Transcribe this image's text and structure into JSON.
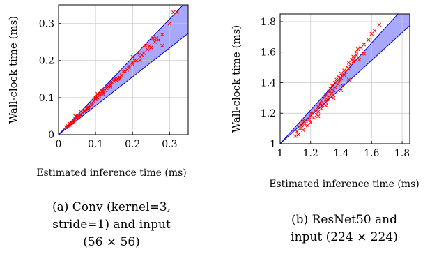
{
  "chart_data": [
    {
      "type": "scatter",
      "xlabel": "Estimated inference time (ms)",
      "ylabel": "Wall-clock time (ms)",
      "caption_lines": [
        "(a) Conv (kernel=3,",
        "stride=1) and input",
        "(56 × 56)"
      ],
      "xlim": [
        0,
        0.35
      ],
      "ylim": [
        0,
        0.35
      ],
      "xticks": [
        0,
        0.1,
        0.2,
        0.3
      ],
      "yticks": [
        0,
        0.1,
        0.2,
        0.3
      ],
      "xtick_labels": [
        "0",
        "0.1",
        "0.2",
        "0.3"
      ],
      "ytick_labels": [
        "0",
        "0.1",
        "0.2",
        "0.3"
      ],
      "grid": true,
      "band": {
        "lower_slope": 0.78,
        "upper_slope": 1.04,
        "color": "#9999ff"
      },
      "marker_color": "#ff0000",
      "points": [
        [
          0.02,
          0.02
        ],
        [
          0.025,
          0.023
        ],
        [
          0.03,
          0.026
        ],
        [
          0.03,
          0.03
        ],
        [
          0.035,
          0.032
        ],
        [
          0.04,
          0.035
        ],
        [
          0.04,
          0.038
        ],
        [
          0.045,
          0.04
        ],
        [
          0.05,
          0.045
        ],
        [
          0.05,
          0.048
        ],
        [
          0.055,
          0.05
        ],
        [
          0.06,
          0.055
        ],
        [
          0.06,
          0.052
        ],
        [
          0.065,
          0.06
        ],
        [
          0.07,
          0.065
        ],
        [
          0.07,
          0.062
        ],
        [
          0.075,
          0.07
        ],
        [
          0.08,
          0.072
        ],
        [
          0.08,
          0.068
        ],
        [
          0.085,
          0.075
        ],
        [
          0.09,
          0.08
        ],
        [
          0.09,
          0.085
        ],
        [
          0.095,
          0.09
        ],
        [
          0.1,
          0.095
        ],
        [
          0.1,
          0.1
        ],
        [
          0.1,
          0.098
        ],
        [
          0.105,
          0.1
        ],
        [
          0.11,
          0.105
        ],
        [
          0.11,
          0.11
        ],
        [
          0.115,
          0.11
        ],
        [
          0.12,
          0.115
        ],
        [
          0.12,
          0.12
        ],
        [
          0.125,
          0.12
        ],
        [
          0.13,
          0.125
        ],
        [
          0.13,
          0.13
        ],
        [
          0.135,
          0.13
        ],
        [
          0.14,
          0.135
        ],
        [
          0.14,
          0.14
        ],
        [
          0.145,
          0.14
        ],
        [
          0.15,
          0.145
        ],
        [
          0.15,
          0.15
        ],
        [
          0.155,
          0.148
        ],
        [
          0.16,
          0.15
        ],
        [
          0.165,
          0.155
        ],
        [
          0.17,
          0.16
        ],
        [
          0.18,
          0.17
        ],
        [
          0.185,
          0.175
        ],
        [
          0.19,
          0.18
        ],
        [
          0.19,
          0.185
        ],
        [
          0.2,
          0.19
        ],
        [
          0.2,
          0.195
        ],
        [
          0.21,
          0.2
        ],
        [
          0.22,
          0.21
        ],
        [
          0.22,
          0.2
        ],
        [
          0.225,
          0.215
        ],
        [
          0.23,
          0.22
        ],
        [
          0.24,
          0.23
        ],
        [
          0.245,
          0.24
        ],
        [
          0.25,
          0.235
        ],
        [
          0.26,
          0.25
        ],
        [
          0.265,
          0.26
        ],
        [
          0.27,
          0.255
        ],
        [
          0.28,
          0.27
        ],
        [
          0.3,
          0.3
        ],
        [
          0.31,
          0.33
        ],
        [
          0.32,
          0.33
        ],
        [
          0.08,
          0.075
        ],
        [
          0.12,
          0.11
        ],
        [
          0.14,
          0.13
        ],
        [
          0.165,
          0.15
        ],
        [
          0.175,
          0.17
        ],
        [
          0.205,
          0.2
        ],
        [
          0.215,
          0.22
        ],
        [
          0.235,
          0.24
        ],
        [
          0.255,
          0.26
        ],
        [
          0.115,
          0.12
        ],
        [
          0.105,
          0.11
        ],
        [
          0.06,
          0.062
        ],
        [
          0.045,
          0.05
        ],
        [
          0.28,
          0.24
        ],
        [
          0.2,
          0.21
        ]
      ]
    },
    {
      "type": "scatter",
      "xlabel": "Estimated inference time (ms)",
      "ylabel": "Wall-clock time (ms)",
      "caption_lines": [
        "(b) ResNet50 and",
        "input (224 × 224)"
      ],
      "xlim": [
        1,
        1.85
      ],
      "ylim": [
        1,
        1.85
      ],
      "xticks": [
        1,
        1.2,
        1.4,
        1.6,
        1.8
      ],
      "yticks": [
        1,
        1.2,
        1.4,
        1.6,
        1.8
      ],
      "xtick_labels": [
        "1",
        "1.2",
        "1.4",
        "1.6",
        "1.8"
      ],
      "ytick_labels": [
        "1",
        "1.2",
        "1.4",
        "1.6",
        "1.8"
      ],
      "grid": true,
      "band": {
        "lower_slope": 0.91,
        "upper_slope": 1.1,
        "color": "#9999ff"
      },
      "marker_color": "#ff0000",
      "points": [
        [
          1.1,
          1.05
        ],
        [
          1.11,
          1.08
        ],
        [
          1.12,
          1.06
        ],
        [
          1.13,
          1.1
        ],
        [
          1.14,
          1.12
        ],
        [
          1.15,
          1.09
        ],
        [
          1.16,
          1.13
        ],
        [
          1.17,
          1.15
        ],
        [
          1.18,
          1.12
        ],
        [
          1.19,
          1.16
        ],
        [
          1.2,
          1.18
        ],
        [
          1.2,
          1.14
        ],
        [
          1.21,
          1.2
        ],
        [
          1.22,
          1.17
        ],
        [
          1.23,
          1.22
        ],
        [
          1.24,
          1.19
        ],
        [
          1.25,
          1.24
        ],
        [
          1.25,
          1.21
        ],
        [
          1.26,
          1.26
        ],
        [
          1.27,
          1.23
        ],
        [
          1.27,
          1.28
        ],
        [
          1.28,
          1.25
        ],
        [
          1.29,
          1.3
        ],
        [
          1.3,
          1.27
        ],
        [
          1.3,
          1.32
        ],
        [
          1.31,
          1.29
        ],
        [
          1.32,
          1.34
        ],
        [
          1.32,
          1.31
        ],
        [
          1.33,
          1.36
        ],
        [
          1.34,
          1.33
        ],
        [
          1.34,
          1.38
        ],
        [
          1.35,
          1.35
        ],
        [
          1.36,
          1.4
        ],
        [
          1.36,
          1.37
        ],
        [
          1.37,
          1.42
        ],
        [
          1.38,
          1.39
        ],
        [
          1.38,
          1.44
        ],
        [
          1.39,
          1.41
        ],
        [
          1.4,
          1.46
        ],
        [
          1.4,
          1.43
        ],
        [
          1.41,
          1.38
        ],
        [
          1.42,
          1.45
        ],
        [
          1.42,
          1.48
        ],
        [
          1.43,
          1.47
        ],
        [
          1.44,
          1.5
        ],
        [
          1.45,
          1.49
        ],
        [
          1.45,
          1.53
        ],
        [
          1.46,
          1.52
        ],
        [
          1.47,
          1.55
        ],
        [
          1.48,
          1.54
        ],
        [
          1.48,
          1.57
        ],
        [
          1.49,
          1.56
        ],
        [
          1.5,
          1.6
        ],
        [
          1.5,
          1.58
        ],
        [
          1.51,
          1.62
        ],
        [
          1.52,
          1.55
        ],
        [
          1.53,
          1.63
        ],
        [
          1.55,
          1.65
        ],
        [
          1.58,
          1.68
        ],
        [
          1.6,
          1.72
        ],
        [
          1.62,
          1.74
        ],
        [
          1.65,
          1.78
        ],
        [
          1.55,
          1.59
        ],
        [
          1.35,
          1.3
        ],
        [
          1.3,
          1.25
        ],
        [
          1.25,
          1.18
        ],
        [
          1.4,
          1.35
        ],
        [
          1.45,
          1.42
        ],
        [
          1.2,
          1.2
        ],
        [
          1.15,
          1.15
        ]
      ]
    }
  ]
}
